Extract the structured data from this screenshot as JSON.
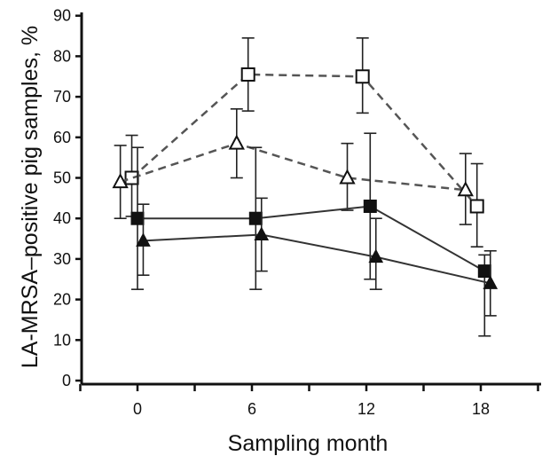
{
  "chart_data": {
    "type": "line",
    "title": "",
    "xlabel": "Sampling month",
    "ylabel": "LA-MRSA–positive pig samples, %",
    "xlim": [
      -3,
      21
    ],
    "ylim": [
      0,
      90
    ],
    "xticks": [
      "0",
      "6",
      "12",
      "18"
    ],
    "yticks": [
      "0",
      "10",
      "20",
      "30",
      "40",
      "50",
      "60",
      "70",
      "80",
      "90"
    ],
    "grid": false,
    "legend": "none",
    "series": [
      {
        "marker": "open-square",
        "line": "dashed",
        "color": "#555555",
        "points": [
          {
            "x": -0.3,
            "y": 50,
            "err_low": 40.5,
            "err_high": 60.5
          },
          {
            "x": 5.8,
            "y": 75.5,
            "err_low": 66.5,
            "err_high": 84.5
          },
          {
            "x": 11.8,
            "y": 75,
            "err_low": 66,
            "err_high": 84.5
          },
          {
            "x": 17.8,
            "y": 43,
            "err_low": 33,
            "err_high": 53.5
          }
        ]
      },
      {
        "marker": "open-triangle",
        "line": "dashed",
        "color": "#555555",
        "points": [
          {
            "x": -0.9,
            "y": 49,
            "err_low": 40,
            "err_high": 58
          },
          {
            "x": 5.2,
            "y": 58.5,
            "err_low": 50,
            "err_high": 67
          },
          {
            "x": 11,
            "y": 50,
            "err_low": 42,
            "err_high": 58.5
          },
          {
            "x": 17.2,
            "y": 47,
            "err_low": 38.5,
            "err_high": 56
          }
        ]
      },
      {
        "marker": "filled-square",
        "line": "solid",
        "color": "#333333",
        "points": [
          {
            "x": 0,
            "y": 40,
            "err_low": 22.5,
            "err_high": 57.5
          },
          {
            "x": 6.2,
            "y": 40,
            "err_low": 22.5,
            "err_high": 57.5
          },
          {
            "x": 12.2,
            "y": 43,
            "err_low": 25,
            "err_high": 61
          },
          {
            "x": 18.2,
            "y": 27,
            "err_low": 11,
            "err_high": 31
          }
        ]
      },
      {
        "marker": "filled-triangle",
        "line": "solid",
        "color": "#333333",
        "points": [
          {
            "x": 0.3,
            "y": 34.5,
            "err_low": 26,
            "err_high": 43.5
          },
          {
            "x": 6.5,
            "y": 36,
            "err_low": 27,
            "err_high": 45
          },
          {
            "x": 12.5,
            "y": 30.5,
            "err_low": 22.5,
            "err_high": 40
          },
          {
            "x": 18.5,
            "y": 24,
            "err_low": 16,
            "err_high": 32
          }
        ]
      }
    ]
  }
}
